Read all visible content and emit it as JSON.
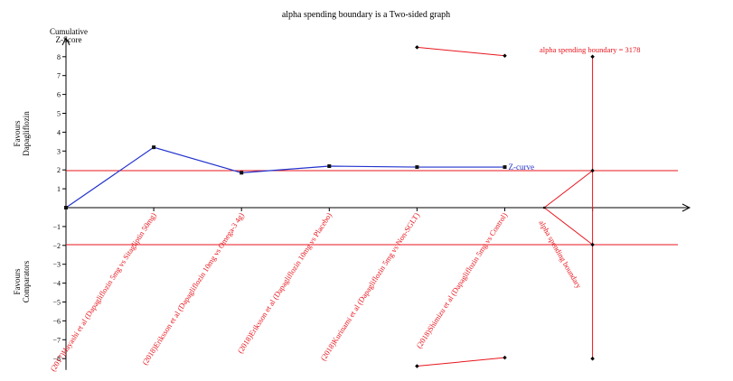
{
  "chart_data": {
    "type": "line",
    "title": "alpha spending boundary is a Two-sided graph",
    "ylabel_top": "Cumulative\nZ-Score",
    "favours_upper": "Favours\nDapagliflozin",
    "favours_lower": "Favours\nComparators",
    "ylim": [
      -8.5,
      8.5
    ],
    "yticks": [
      -8,
      -7,
      -6,
      -5,
      -4,
      -3,
      -2,
      -1,
      1,
      2,
      3,
      4,
      5,
      6,
      7,
      8
    ],
    "x": [
      0,
      1,
      2,
      3,
      4,
      5
    ],
    "categories": [
      "(2017)Hayashi et al (Dapagliflozin 5mg vs Sitagliptin 50mg)",
      "(2018)Eriksson et al (Dapagliflozin 10mg vs Omega-3 4g)",
      "(2018)Eriksson et al (Dapagliflozin 10mg vs Placebo)",
      "(2018)Kurinami et al (Dapagliflozin 5mg vs Non-SGLT)",
      "(2018)Shimizu et al (Dapagliflozin 5mg vs Control)"
    ],
    "z_curve": {
      "name": "Z-curve",
      "color": "#2233cc",
      "points": [
        [
          0,
          0
        ],
        [
          1,
          3.2
        ],
        [
          2,
          1.85
        ],
        [
          3,
          2.2
        ],
        [
          4,
          2.15
        ],
        [
          5,
          2.15
        ]
      ]
    },
    "conventional_boundary": {
      "upper": 1.96,
      "lower": -1.96,
      "color": "#e8141c"
    },
    "alpha_spending": {
      "label": "alpha spending boundary = 3178",
      "axis_label": "alpha spending boundary",
      "x_ris": 6.0,
      "upper_points": [
        [
          4,
          8.5
        ],
        [
          5,
          8.05
        ]
      ],
      "lower_points": [
        [
          4,
          -8.4
        ],
        [
          5,
          -7.95
        ]
      ],
      "ris_upper": 8.0,
      "ris_lower": -8.0,
      "converge_x": 5.45,
      "converge_upper": 1.96,
      "converge_lower": -1.96,
      "color": "#e8141c"
    },
    "grid": false,
    "legend": "none"
  }
}
